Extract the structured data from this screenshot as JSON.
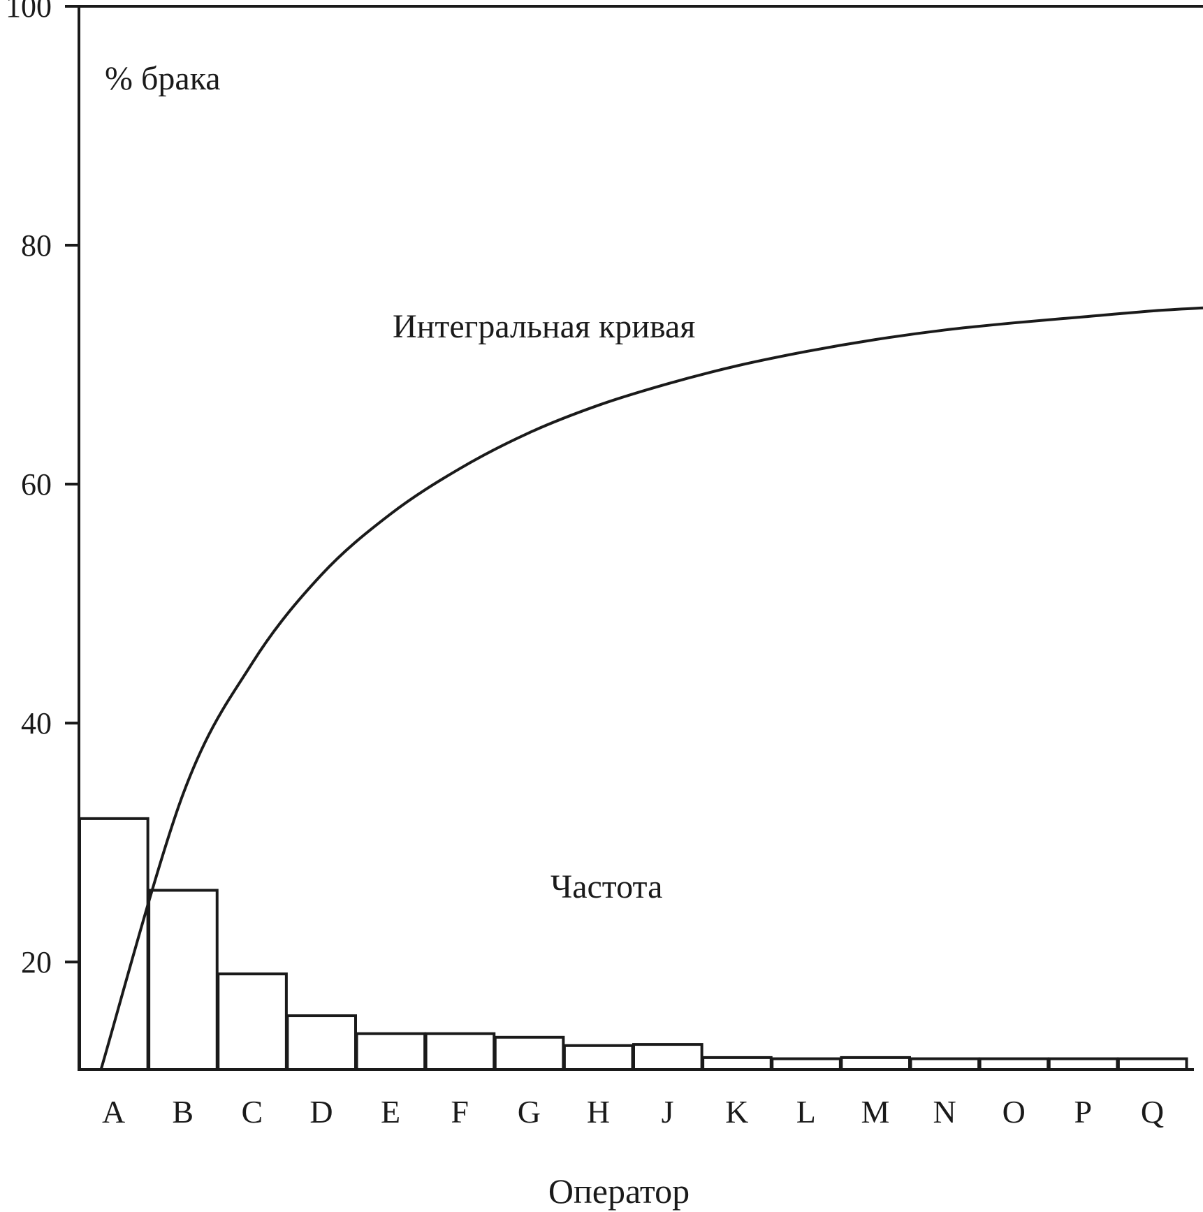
{
  "chart_data": {
    "type": "bar",
    "xlabel": "Оператор",
    "ylabel": "% брака",
    "ylim": [
      11,
      100
    ],
    "yticks": [
      20,
      40,
      60,
      80,
      100
    ],
    "grid": false,
    "categories": [
      "A",
      "B",
      "C",
      "D",
      "E",
      "F",
      "G",
      "H",
      "J",
      "K",
      "L",
      "M",
      "N",
      "O",
      "P",
      "Q"
    ],
    "series": [
      {
        "name": "Частота",
        "type": "bar",
        "values": [
          32,
          26,
          19,
          15.5,
          14,
          14,
          13.7,
          13,
          13.1,
          12,
          11.9,
          12,
          11.9,
          11.9,
          11.9,
          11.9
        ]
      },
      {
        "name": "Интегральная кривая",
        "type": "line",
        "values": [
          11,
          34,
          45,
          52.4,
          57.5,
          61.3,
          64.3,
          66.6,
          68.4,
          69.9,
          71.1,
          72.1,
          72.9,
          73.5,
          74,
          74.5
        ]
      }
    ]
  }
}
